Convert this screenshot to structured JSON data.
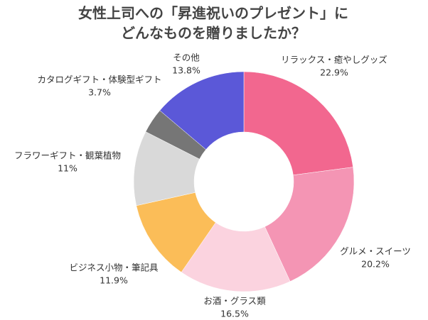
{
  "chart_data": {
    "type": "donut",
    "title_lines": [
      "女性上司への「昇進祝いのプレゼント」に",
      "どんなものを贈りましたか？"
    ],
    "categories": [
      "リラックス・癒やしグッズ",
      "グルメ・スイーツ",
      "お酒・グラス類",
      "ビジネス小物・筆記具",
      "フラワーギフト・観葉植物",
      "カタログギフト・体験型ギフト",
      "その他"
    ],
    "values": [
      22.9,
      20.2,
      16.5,
      11.9,
      11,
      3.7,
      13.8
    ],
    "value_labels": [
      "22.9%",
      "20.2%",
      "16.5%",
      "11.9%",
      "11%",
      "3.7%",
      "13.8%"
    ],
    "colors": [
      "#f2678f",
      "#f495b4",
      "#fbd3df",
      "#fbbd58",
      "#d9d9d9",
      "#767676",
      "#5b58d8"
    ]
  }
}
